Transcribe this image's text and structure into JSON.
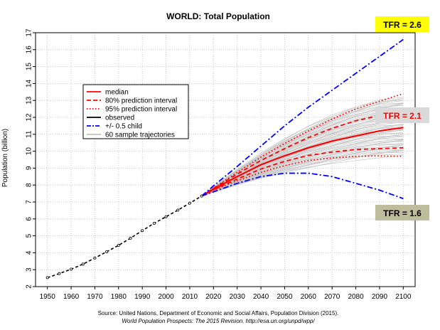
{
  "chart_data": {
    "type": "line",
    "title": "WORLD: Total Population",
    "xlabel": "",
    "ylabel": "Population (billion)",
    "xlim": [
      1945,
      2105
    ],
    "ylim": [
      2,
      17
    ],
    "x_ticks": [
      1950,
      1960,
      1970,
      1980,
      1990,
      2000,
      2010,
      2020,
      2030,
      2040,
      2050,
      2060,
      2070,
      2080,
      2090,
      2100
    ],
    "y_ticks": [
      2,
      3,
      4,
      5,
      6,
      7,
      8,
      9,
      10,
      11,
      12,
      13,
      14,
      15,
      16,
      17
    ],
    "grid": true,
    "legend": {
      "position": "top-left",
      "entries": [
        {
          "label": "median",
          "color": "#ff0000",
          "style": "solid"
        },
        {
          "label": "80% prediction interval",
          "color": "#ff0000",
          "style": "dashed"
        },
        {
          "label": "95% prediction interval",
          "color": "#ff0000",
          "style": "dotted"
        },
        {
          "label": "observed",
          "color": "#000000",
          "style": "solid"
        },
        {
          "label": "+/- 0.5 child",
          "color": "#0000ff",
          "style": "dashdot"
        },
        {
          "label": "60 sample trajectories",
          "color": "#aaaaaa",
          "style": "solid"
        }
      ]
    },
    "series": [
      {
        "name": "observed",
        "color": "#000000",
        "x": [
          1950,
          1955,
          1960,
          1965,
          1970,
          1975,
          1980,
          1985,
          1990,
          1995,
          2000,
          2005,
          2010,
          2015
        ],
        "y": [
          2.53,
          2.77,
          3.03,
          3.33,
          3.69,
          4.06,
          4.44,
          4.86,
          5.31,
          5.74,
          6.13,
          6.52,
          6.93,
          7.35
        ]
      },
      {
        "name": "median",
        "color": "#ff0000",
        "x": [
          2015,
          2020,
          2030,
          2040,
          2050,
          2060,
          2070,
          2080,
          2090,
          2100
        ],
        "y": [
          7.35,
          7.76,
          8.5,
          9.2,
          9.73,
          10.2,
          10.6,
          10.9,
          11.2,
          11.4
        ]
      },
      {
        "name": "80% upper",
        "color": "#ff0000",
        "x": [
          2015,
          2020,
          2030,
          2040,
          2050,
          2060,
          2070,
          2080,
          2090,
          2100
        ],
        "y": [
          7.35,
          7.8,
          8.65,
          9.45,
          10.15,
          10.8,
          11.35,
          11.8,
          12.1,
          12.4
        ]
      },
      {
        "name": "80% lower",
        "color": "#ff0000",
        "x": [
          2015,
          2020,
          2030,
          2040,
          2050,
          2060,
          2070,
          2080,
          2090,
          2100
        ],
        "y": [
          7.35,
          7.72,
          8.35,
          8.95,
          9.4,
          9.75,
          9.95,
          10.1,
          10.15,
          10.2
        ]
      },
      {
        "name": "95% upper",
        "color": "#ff0000",
        "x": [
          2015,
          2020,
          2030,
          2040,
          2050,
          2060,
          2070,
          2080,
          2090,
          2100
        ],
        "y": [
          7.35,
          7.82,
          8.75,
          9.65,
          10.45,
          11.2,
          11.9,
          12.5,
          12.95,
          13.4
        ]
      },
      {
        "name": "95% lower",
        "color": "#ff0000",
        "x": [
          2015,
          2020,
          2030,
          2040,
          2050,
          2060,
          2070,
          2080,
          2090,
          2100
        ],
        "y": [
          7.35,
          7.7,
          8.25,
          8.75,
          9.15,
          9.45,
          9.6,
          9.7,
          9.72,
          9.7
        ]
      },
      {
        "name": "+0.5 child",
        "color": "#0000ff",
        "x": [
          2015,
          2020,
          2030,
          2040,
          2050,
          2060,
          2070,
          2080,
          2090,
          2100
        ],
        "y": [
          7.35,
          7.95,
          9.1,
          10.3,
          11.5,
          12.6,
          13.6,
          14.6,
          15.6,
          16.6
        ]
      },
      {
        "name": "-0.5 child",
        "color": "#0000ff",
        "x": [
          2015,
          2020,
          2030,
          2040,
          2050,
          2060,
          2070,
          2080,
          2090,
          2100
        ],
        "y": [
          7.35,
          7.6,
          8.1,
          8.5,
          8.7,
          8.7,
          8.5,
          8.1,
          7.7,
          7.2
        ]
      }
    ],
    "sample_trajectories": {
      "count": 60,
      "x": [
        2015,
        2020,
        2030,
        2040,
        2050,
        2060,
        2070,
        2080,
        2090,
        2100
      ],
      "min_y_2100": 9.8,
      "max_y_2100": 13.2
    },
    "annotations": [
      {
        "text": "TFR = 2.6",
        "background": "#ffff00"
      },
      {
        "text": "TFR = 2.1",
        "background": "#d9d9d9",
        "color": "#ff0000"
      },
      {
        "text": "TFR = 1.6",
        "background": "#bdbd9e"
      }
    ],
    "source_line1": "Source: United Nations, Department of Economic and Social Affairs, Population Division (2015).",
    "source_line2": "World Population Prospects: The 2015 Revision. http://esa.un.org/unpd/wpp/"
  }
}
